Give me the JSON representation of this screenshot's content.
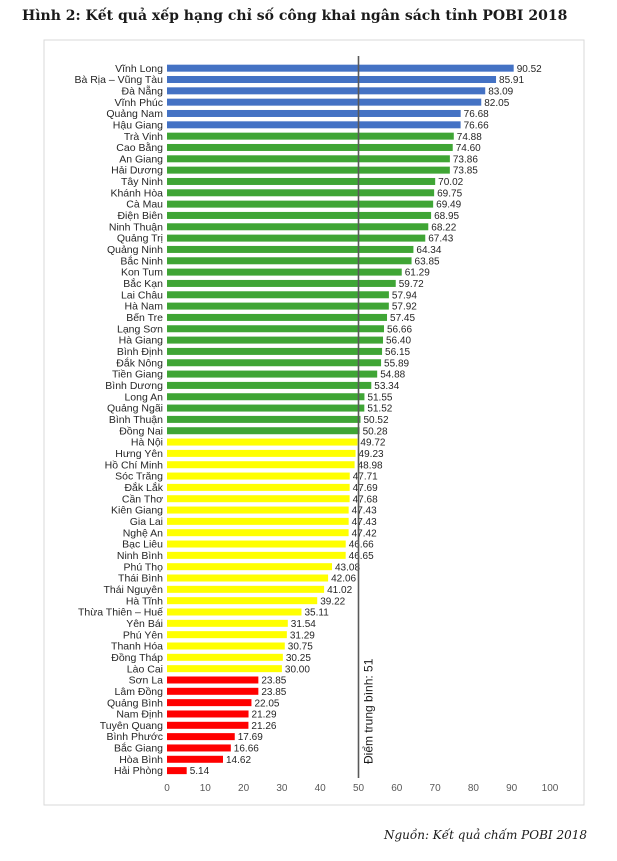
{
  "page": {
    "title": "Hình 2: Kết quả xếp hạng chỉ số công khai ngân sách tỉnh POBI 2018",
    "source": "Nguồn: Kết quả chấm POBI 2018"
  },
  "chart_data": {
    "type": "bar",
    "orientation": "horizontal",
    "title": "",
    "xlabel": "",
    "ylabel": "",
    "xlim": [
      0,
      100
    ],
    "ticks": [
      "0",
      "10",
      "20",
      "30",
      "40",
      "50",
      "60",
      "70",
      "80",
      "90",
      "100"
    ],
    "grid": false,
    "legend": "none",
    "average_line": {
      "value": 51,
      "label": "Điểm trung bình: 51",
      "color": "#595959"
    },
    "colors": {
      "blue": "#4472C4",
      "green": "#3FA535",
      "yellow": "#FFFF00",
      "red": "#FF0000"
    },
    "categories": [
      "Vĩnh Long",
      "Bà Rịa – Vũng Tàu",
      "Đà Nẵng",
      "Vĩnh Phúc",
      "Quảng Nam",
      "Hậu Giang",
      "Trà Vinh",
      "Cao Bằng",
      "An Giang",
      "Hải Dương",
      "Tây Ninh",
      "Khánh Hòa",
      "Cà Mau",
      "Điện Biên",
      "Ninh Thuận",
      "Quảng Trị",
      "Quảng Ninh",
      "Bắc Ninh",
      "Kon Tum",
      "Bắc Kạn",
      "Lai Châu",
      "Hà Nam",
      "Bến Tre",
      "Lạng Sơn",
      "Hà Giang",
      "Bình Định",
      "Đắk Nông",
      "Tiền Giang",
      "Bình Dương",
      "Long An",
      "Quảng Ngãi",
      "Bình Thuận",
      "Đồng Nai",
      "Hà Nội",
      "Hưng Yên",
      "Hồ Chí Minh",
      "Sóc Trăng",
      "Đắk Lắk",
      "Cần Thơ",
      "Kiên Giang",
      "Gia Lai",
      "Nghệ An",
      "Bạc Liêu",
      "Ninh Bình",
      "Phú Thọ",
      "Thái Bình",
      "Thái Nguyên",
      "Hà Tĩnh",
      "Thừa Thiên – Huế",
      "Yên Bái",
      "Phú Yên",
      "Thanh Hóa",
      "Đồng Tháp",
      "Lào Cai",
      "Sơn La",
      "Lâm Đồng",
      "Quảng Bình",
      "Nam Định",
      "Tuyên Quang",
      "Bình Phước",
      "Bắc Giang",
      "Hòa Bình",
      "Hải Phòng"
    ],
    "values": [
      90.52,
      85.91,
      83.09,
      82.05,
      76.68,
      76.66,
      74.88,
      74.6,
      73.86,
      73.85,
      70.02,
      69.75,
      69.49,
      68.95,
      68.22,
      67.43,
      64.34,
      63.85,
      61.29,
      59.72,
      57.94,
      57.92,
      57.45,
      56.66,
      56.4,
      56.15,
      55.89,
      54.88,
      53.34,
      51.55,
      51.52,
      50.52,
      50.28,
      49.72,
      49.23,
      48.98,
      47.71,
      47.69,
      47.68,
      47.43,
      47.43,
      47.42,
      46.66,
      46.65,
      43.08,
      42.06,
      41.02,
      39.22,
      35.11,
      31.54,
      31.29,
      30.75,
      30.25,
      30.0,
      23.85,
      23.85,
      22.05,
      21.29,
      21.26,
      17.69,
      16.66,
      14.62,
      5.14
    ],
    "value_labels": [
      "90.52",
      "85.91",
      "83.09",
      "82.05",
      "76.68",
      "76.66",
      "74.88",
      "74.60",
      "73.86",
      "73.85",
      "70.02",
      "69.75",
      "69.49",
      "68.95",
      "68.22",
      "67.43",
      "64.34",
      "63.85",
      "61.29",
      "59.72",
      "57.94",
      "57.92",
      "57.45",
      "56.66",
      "56.40",
      "56.15",
      "55.89",
      "54.88",
      "53.34",
      "51.55",
      "51.52",
      "50.52",
      "50.28",
      "49.72",
      "49.23",
      "48.98",
      "47.71",
      "47.69",
      "47.68",
      "47.43",
      "47.43",
      "47.42",
      "46.66",
      "46.65",
      "43.08",
      "42.06",
      "41.02",
      "39.22",
      "35.11",
      "31.54",
      "31.29",
      "30.75",
      "30.25",
      "30.00",
      "23.85",
      "23.85",
      "22.05",
      "21.29",
      "21.26",
      "17.69",
      "16.66",
      "14.62",
      "5.14"
    ],
    "bar_colors": [
      "blue",
      "blue",
      "blue",
      "blue",
      "blue",
      "blue",
      "green",
      "green",
      "green",
      "green",
      "green",
      "green",
      "green",
      "green",
      "green",
      "green",
      "green",
      "green",
      "green",
      "green",
      "green",
      "green",
      "green",
      "green",
      "green",
      "green",
      "green",
      "green",
      "green",
      "green",
      "green",
      "green",
      "green",
      "yellow",
      "yellow",
      "yellow",
      "yellow",
      "yellow",
      "yellow",
      "yellow",
      "yellow",
      "yellow",
      "yellow",
      "yellow",
      "yellow",
      "yellow",
      "yellow",
      "yellow",
      "yellow",
      "yellow",
      "yellow",
      "yellow",
      "yellow",
      "yellow",
      "red",
      "red",
      "red",
      "red",
      "red",
      "red",
      "red",
      "red",
      "red"
    ]
  }
}
